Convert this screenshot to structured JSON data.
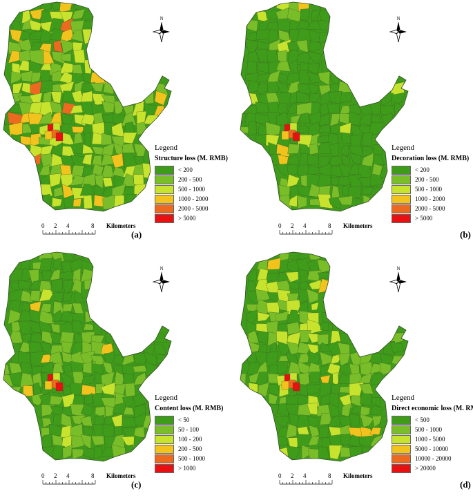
{
  "colors": {
    "c1": "#3f9b1a",
    "c2": "#79bd28",
    "c3": "#c8e32e",
    "c4": "#f2c31d",
    "c5": "#ec6a1f",
    "c6": "#e81010"
  },
  "north_label": "N",
  "scale": {
    "ticks": [
      "0",
      "2",
      "4",
      "8"
    ],
    "unit": "Kilometers"
  },
  "panels": [
    {
      "label": "(a)",
      "legend_title": "Legend",
      "legend_subtitle": "Structure loss (M. RMB)",
      "classes": [
        "< 200",
        "200 - 500",
        "500 - 1000",
        "1000 - 2000",
        "2000 - 5000",
        "> 5000"
      ]
    },
    {
      "label": "(b)",
      "legend_title": "Legend",
      "legend_subtitle": "Decoration loss (M. RMB)",
      "classes": [
        "< 200",
        "200 - 500",
        "500 - 1000",
        "1000 - 2000",
        "2000 - 5000",
        "> 5000"
      ]
    },
    {
      "label": "(c)",
      "legend_title": "Legend",
      "legend_subtitle": "Content loss (M. RMB)",
      "classes": [
        "< 50",
        "50 - 100",
        "100 - 200",
        "200 - 500",
        "500 - 1000",
        "> 1000"
      ]
    },
    {
      "label": "(d)",
      "legend_title": "Legend",
      "legend_subtitle": "Direct economic loss (M. RMB",
      "classes": [
        "< 500",
        "500 - 1000",
        "1000 - 5000",
        "5000 - 10000",
        "10000 - 20000",
        "> 20000"
      ]
    }
  ]
}
